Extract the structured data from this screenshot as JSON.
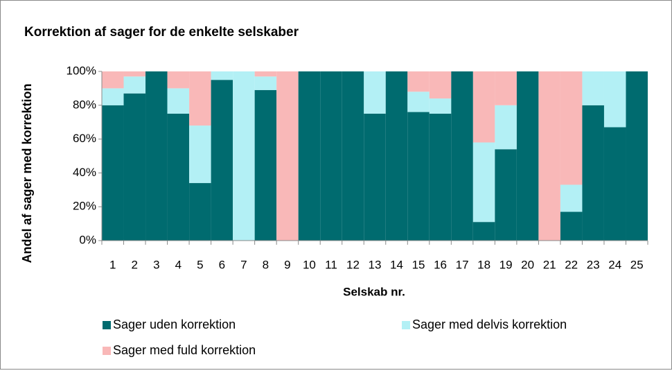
{
  "chart_data": {
    "type": "stacked_bar",
    "title": "Korrektion af sager for de enkelte selskaber",
    "x_label": "Selskab nr.",
    "y_label": "Andel af sager med korrektion",
    "categories": [
      "1",
      "2",
      "3",
      "4",
      "5",
      "6",
      "7",
      "8",
      "9",
      "10",
      "11",
      "12",
      "13",
      "14",
      "15",
      "16",
      "17",
      "18",
      "19",
      "20",
      "21",
      "22",
      "23",
      "24",
      "25"
    ],
    "series": [
      {
        "name": "Sager uden korrektion",
        "color": "#006b6f",
        "values": [
          80,
          87,
          100,
          75,
          34,
          95,
          0,
          89,
          0,
          100,
          100,
          100,
          75,
          100,
          76,
          75,
          100,
          11,
          54,
          100,
          0,
          17,
          80,
          67,
          100
        ]
      },
      {
        "name": "Sager med delvis korrektion",
        "color": "#b3f0f5",
        "values": [
          10,
          10,
          0,
          15,
          34,
          5,
          100,
          8,
          0,
          0,
          0,
          0,
          25,
          0,
          12,
          9,
          0,
          47,
          26,
          0,
          0,
          16,
          20,
          33,
          0
        ]
      },
      {
        "name": "Sager med fuld korrektion",
        "color": "#f9b8b8",
        "values": [
          10,
          3,
          0,
          10,
          32,
          0,
          0,
          3,
          100,
          0,
          0,
          0,
          0,
          0,
          12,
          16,
          0,
          42,
          20,
          0,
          100,
          67,
          0,
          0,
          0
        ]
      }
    ],
    "ylim": [
      0,
      100
    ],
    "yticks": [
      {
        "value": 0,
        "label": "0%"
      },
      {
        "value": 20,
        "label": "20%"
      },
      {
        "value": 40,
        "label": "40%"
      },
      {
        "value": 60,
        "label": "60%"
      },
      {
        "value": 80,
        "label": "80%"
      },
      {
        "value": 100,
        "label": "100%"
      }
    ]
  }
}
